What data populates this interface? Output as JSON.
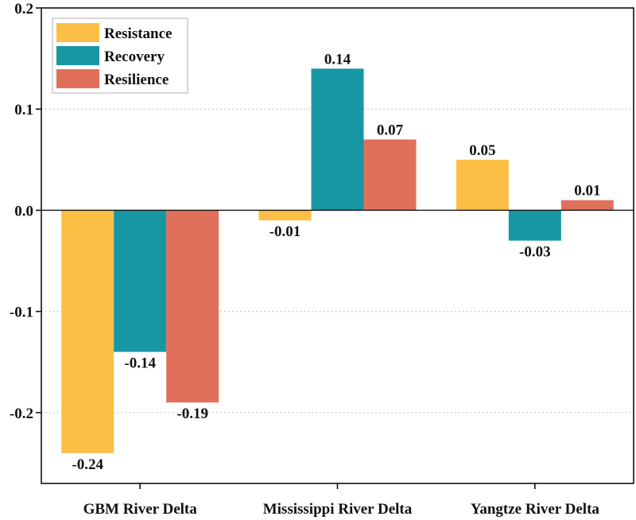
{
  "chart_data": {
    "type": "bar",
    "categories": [
      "GBM River Delta",
      "Mississippi River Delta",
      "Yangtze River Delta"
    ],
    "series": [
      {
        "name": "Resistance",
        "color": "#fcbf45",
        "values": [
          -0.24,
          -0.01,
          0.05
        ]
      },
      {
        "name": "Recovery",
        "color": "#1797a3",
        "values": [
          -0.14,
          0.14,
          -0.03
        ]
      },
      {
        "name": "Resilience",
        "color": "#e0705c",
        "values": [
          -0.19,
          0.07,
          0.01
        ]
      }
    ],
    "data_labels": [
      [
        "-0.24",
        "-0.01",
        "0.05"
      ],
      [
        "-0.14",
        "0.14",
        "-0.03"
      ],
      [
        "-0.19",
        "0.07",
        "0.01"
      ]
    ],
    "yticks": [
      {
        "value": 0.2,
        "label": "0.2"
      },
      {
        "value": 0.1,
        "label": "0.1"
      },
      {
        "value": 0.0,
        "label": "0.0"
      },
      {
        "value": -0.1,
        "label": "-0.1"
      },
      {
        "value": -0.2,
        "label": "-0.2"
      }
    ],
    "ylim": [
      -0.27,
      0.2
    ],
    "title": "",
    "xlabel": "",
    "ylabel": "",
    "grid": "horizontal dotted",
    "legend_position": "top-left"
  }
}
